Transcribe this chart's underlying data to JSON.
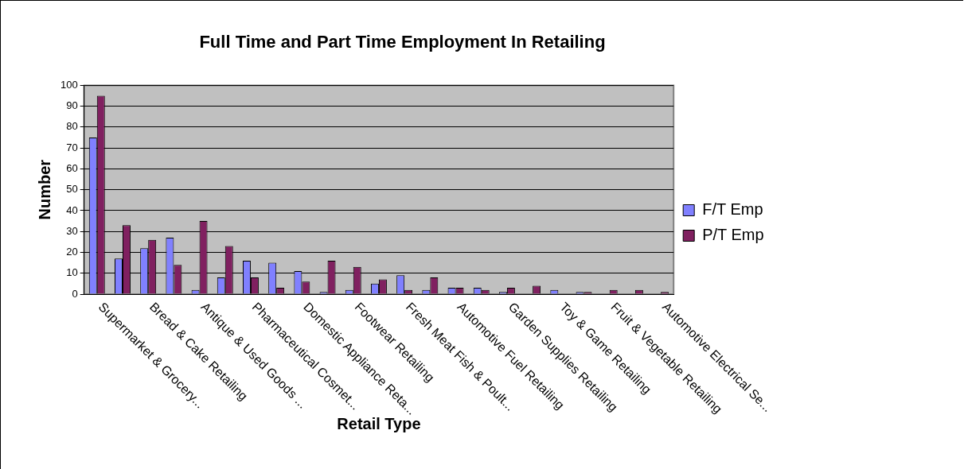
{
  "chart_data": {
    "type": "bar",
    "title": "Full Time and Part Time Employment In Retailing",
    "xlabel": "Retail Type",
    "ylabel": "Number",
    "categories": [
      "Supermarket & Grocery...",
      null,
      "Bread & Cake Retailing",
      null,
      "Antique & Used Goods ...",
      null,
      "Pharmaceutical Cosmet...",
      null,
      "Domestic Appliance Reta...",
      null,
      "Footwear Retailing",
      null,
      "Fresh Meat Fish & Poult...",
      null,
      "Automotive Fuel Retailing",
      null,
      "Garden Supplies Retailing",
      null,
      "Toy & Game Retailing",
      null,
      "Fruit & Vegetable Retailing",
      null,
      "Automotive Electrical Se..."
    ],
    "series": [
      {
        "name": "F/T Emp",
        "color": "#8080ff",
        "values": [
          75,
          17,
          22,
          27,
          2,
          8,
          16,
          15,
          11,
          1,
          2,
          5,
          9,
          2,
          3,
          3,
          1,
          0,
          2,
          1,
          0,
          0,
          0
        ]
      },
      {
        "name": "P/T Emp",
        "color": "#802060",
        "values": [
          95,
          33,
          26,
          14,
          35,
          23,
          8,
          3,
          6,
          16,
          13,
          7,
          2,
          8,
          3,
          2,
          3,
          4,
          0,
          1,
          2,
          2,
          1
        ]
      }
    ],
    "ylim": [
      0,
      100
    ],
    "yticks": [
      0,
      10,
      20,
      30,
      40,
      50,
      60,
      70,
      80,
      90,
      100
    ],
    "grid": "y",
    "legend": "right"
  }
}
